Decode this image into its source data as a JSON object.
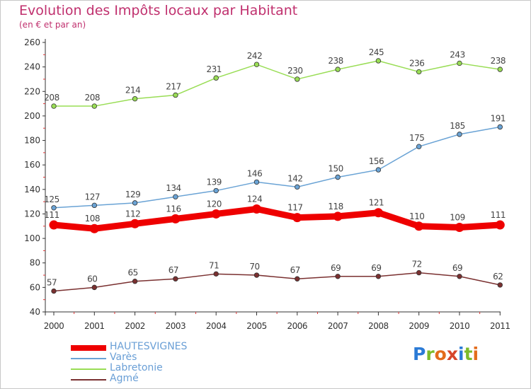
{
  "header": {
    "title": "Evolution des Impôts locaux par Habitant",
    "subtitle": "(en € et par an)"
  },
  "logo": {
    "text": "Proxiti",
    "letter_colors": [
      "#2b7bd6",
      "#7dbb2a",
      "#e36c1c",
      "#d6452b",
      "#2b7bd6",
      "#7dbb2a",
      "#e36c1c"
    ]
  },
  "chart_data": {
    "type": "line",
    "title": "Evolution des Impôts locaux par Habitant",
    "subtitle": "(en € et par an)",
    "x": [
      "2000",
      "2001",
      "2002",
      "2003",
      "2004",
      "2005",
      "2006",
      "2007",
      "2008",
      "2009",
      "2010",
      "2011"
    ],
    "y_ticks": [
      40,
      60,
      80,
      100,
      120,
      140,
      160,
      180,
      200,
      220,
      240,
      260
    ],
    "ylim": [
      40,
      260
    ],
    "grid": false,
    "legend_position": "bottom-left",
    "series": [
      {
        "name": "HAUTESVIGNES",
        "color": "#ee0000",
        "values": [
          111,
          108,
          112,
          116,
          120,
          124,
          117,
          118,
          121,
          110,
          109,
          111
        ],
        "highlight": true
      },
      {
        "name": "Varès",
        "color": "#6aa3d5",
        "values": [
          125,
          127,
          129,
          134,
          139,
          146,
          142,
          150,
          156,
          175,
          185,
          191
        ],
        "highlight": false
      },
      {
        "name": "Labretonie",
        "color": "#99dd55",
        "values": [
          208,
          208,
          214,
          217,
          231,
          242,
          230,
          238,
          245,
          236,
          243,
          238
        ],
        "highlight": false
      },
      {
        "name": "Agmé",
        "color": "#7a3030",
        "values": [
          57,
          60,
          65,
          67,
          71,
          70,
          67,
          69,
          69,
          72,
          69,
          62
        ],
        "highlight": false
      }
    ]
  }
}
